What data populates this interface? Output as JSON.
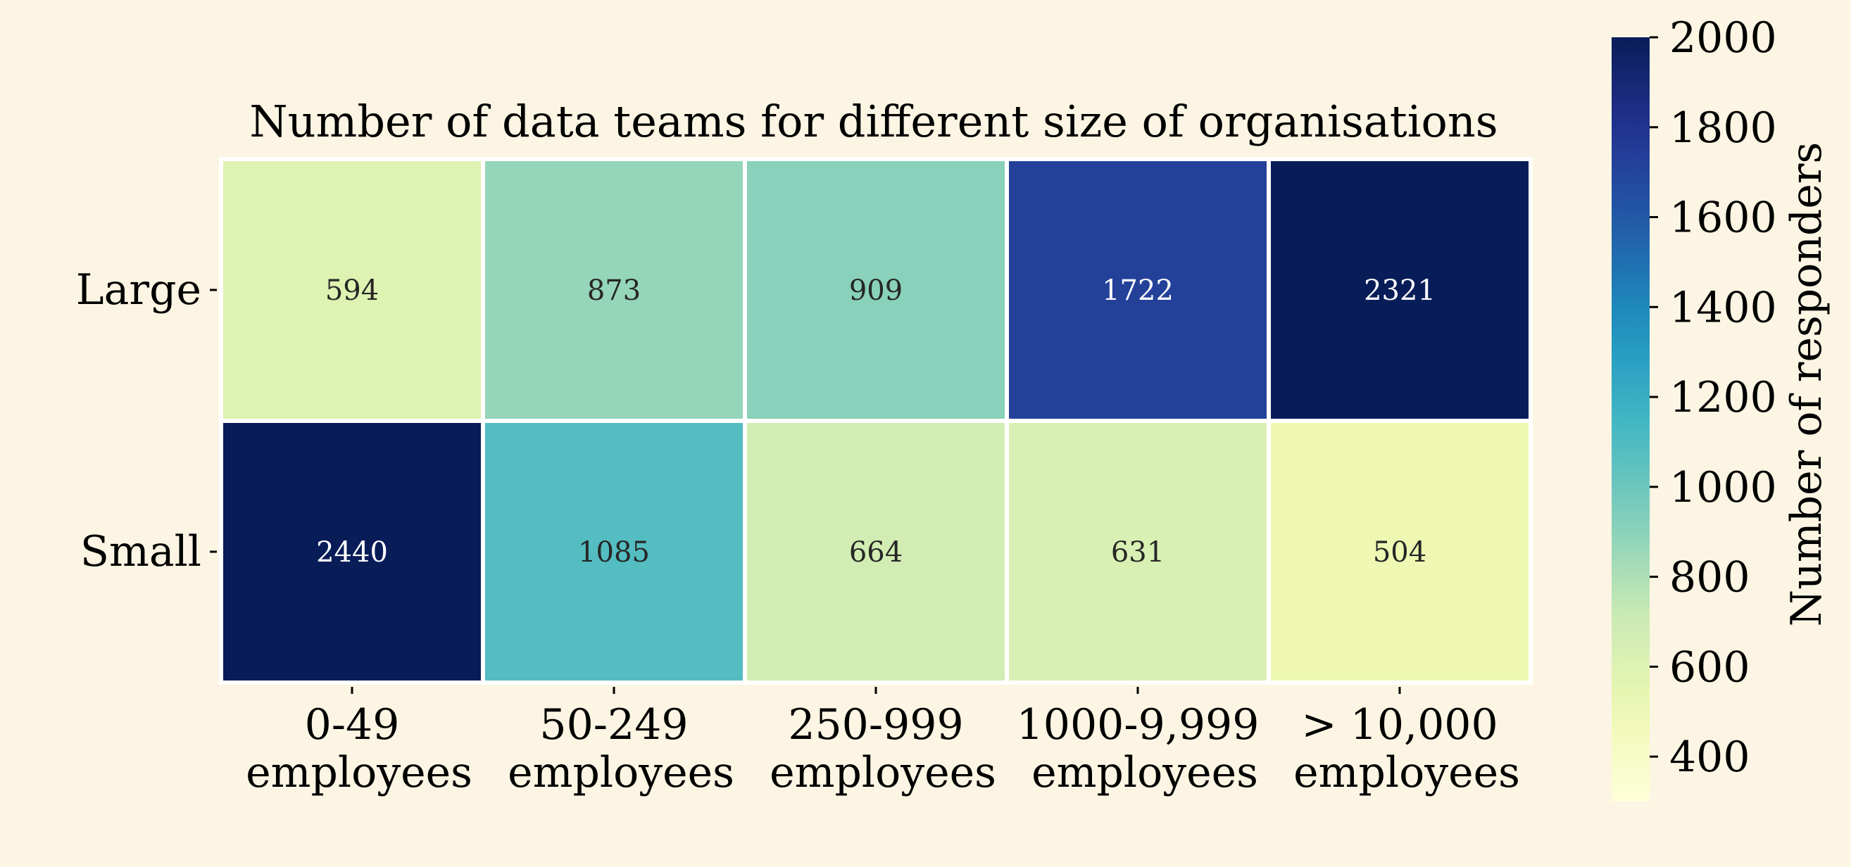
{
  "chart_data": {
    "type": "heatmap",
    "title": "Number of data teams for different size of organisations",
    "rows": [
      "Large",
      "Small"
    ],
    "columns": [
      [
        "0-49",
        "employees"
      ],
      [
        "50-249",
        "employees"
      ],
      [
        "250-999",
        "employees"
      ],
      [
        "1000-9,999",
        "employees"
      ],
      [
        "> 10,000",
        "employees"
      ]
    ],
    "values": [
      [
        594,
        873,
        909,
        1722,
        2321
      ],
      [
        2440,
        1085,
        664,
        631,
        504
      ]
    ],
    "colorbar": {
      "label": "Number of responders",
      "range": [
        300,
        2000
      ],
      "ticks": [
        400,
        600,
        800,
        1000,
        1200,
        1400,
        1600,
        1800,
        2000
      ],
      "colormap": "YlGnBu"
    },
    "colors": {
      "background": "#fcf5e3",
      "cell_border": "#ffffff",
      "text_dark": "#262626",
      "text_light": "#ffffff"
    }
  }
}
